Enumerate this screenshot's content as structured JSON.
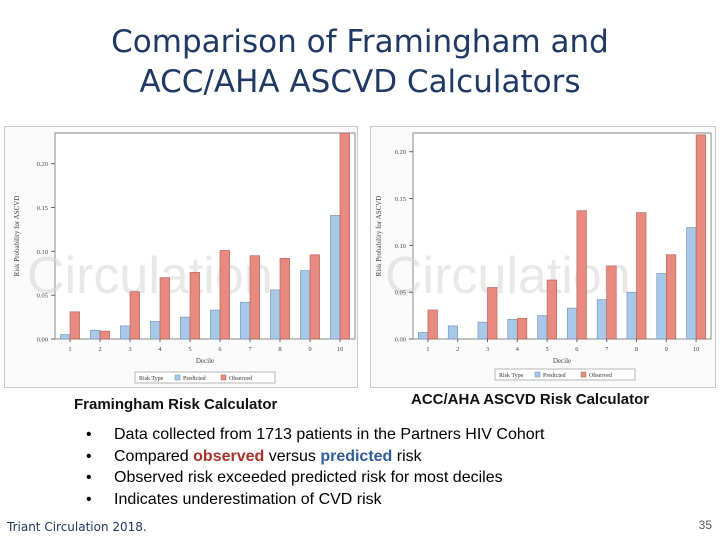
{
  "slide": {
    "title_line1": "Comparison of Framingham and",
    "title_line2": "ACC/AHA ASCVD Calculators",
    "caption_left": "Framingham Risk Calculator",
    "caption_right": "ACC/AHA ASCVD Risk Calculator",
    "bullet_marker": "•",
    "bullets": {
      "b1": "Data collected from 1713 patients in the Partners HIV Cohort",
      "b2_pre": "Compared ",
      "b2_observed": "observed",
      "b2_mid": " versus ",
      "b2_predicted": "predicted",
      "b2_post": " risk",
      "b3": "Observed risk exceeded predicted risk for most deciles",
      "b4": "Indicates underestimation of CVD risk"
    },
    "citation": "Triant Circulation 2018.",
    "page_number": "35",
    "watermark": "Circulation"
  },
  "colors": {
    "predicted": "#a8c8e8",
    "observed": "#e88a80",
    "title": "#1f3864"
  },
  "chart_data": [
    {
      "type": "bar",
      "categories": [
        "1",
        "2",
        "3",
        "4",
        "5",
        "6",
        "7",
        "8",
        "9",
        "10"
      ],
      "series": [
        {
          "name": "Predicted",
          "values": [
            0.005,
            0.01,
            0.015,
            0.02,
            0.025,
            0.033,
            0.042,
            0.056,
            0.078,
            0.141
          ]
        },
        {
          "name": "Observed",
          "values": [
            0.031,
            0.009,
            0.054,
            0.07,
            0.076,
            0.101,
            0.095,
            0.092,
            0.096,
            0.235
          ]
        }
      ],
      "xlabel": "Decile",
      "ylabel": "Risk Probability for ASCVD",
      "yticks": [
        "0.00",
        "0.05",
        "0.10",
        "0.15",
        "0.20"
      ],
      "ylim": [
        0,
        0.235
      ],
      "legend_title": "Risk Type",
      "legend_position": "bottom"
    },
    {
      "type": "bar",
      "categories": [
        "1",
        "2",
        "3",
        "4",
        "5",
        "6",
        "7",
        "8",
        "9",
        "10"
      ],
      "series": [
        {
          "name": "Predicted",
          "values": [
            0.007,
            0.014,
            0.018,
            0.021,
            0.025,
            0.033,
            0.042,
            0.05,
            0.07,
            0.119
          ]
        },
        {
          "name": "Observed",
          "values": [
            0.031,
            0.0,
            0.055,
            0.022,
            0.063,
            0.137,
            0.078,
            0.135,
            0.09,
            0.218
          ]
        }
      ],
      "xlabel": "Decile",
      "ylabel": "Risk Probability for ASCVD",
      "yticks": [
        "0.00",
        "0.05",
        "0.10",
        "0.15",
        "0.20"
      ],
      "ylim": [
        0,
        0.22
      ],
      "legend_title": "Risk Type",
      "legend_position": "bottom"
    }
  ]
}
